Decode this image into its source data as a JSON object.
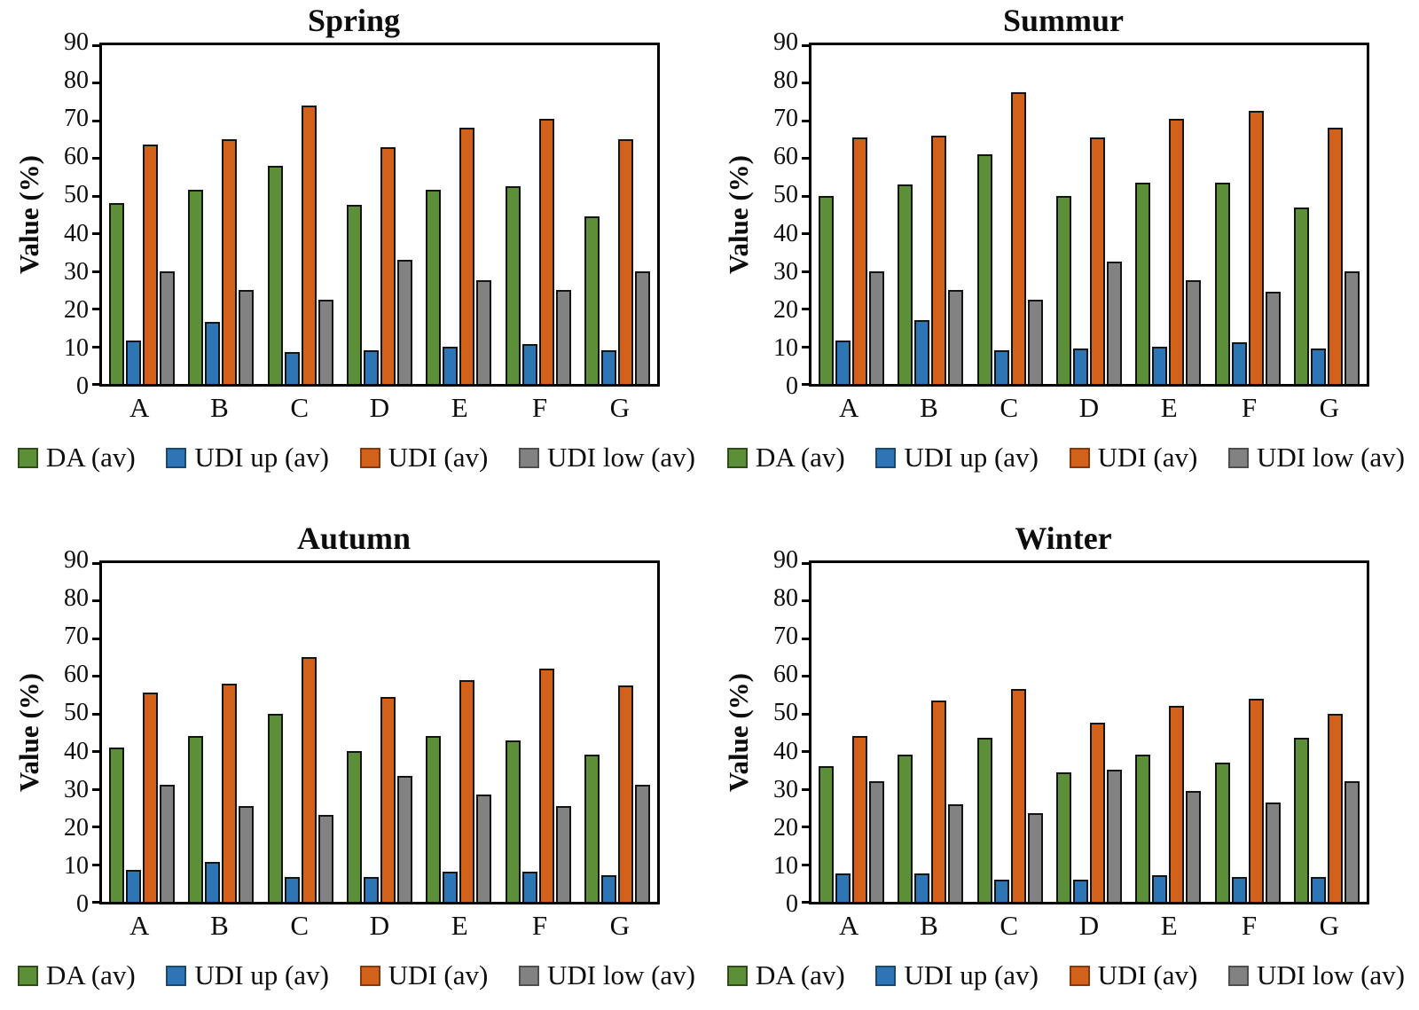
{
  "figure": {
    "ylabel": "Value (%)",
    "categories": [
      "A",
      "B",
      "C",
      "D",
      "E",
      "F",
      "G"
    ],
    "series_colors": {
      "da": "#5C8F38",
      "udi_up": "#2E75B6",
      "udi": "#D2611C",
      "udi_low": "#828282"
    },
    "series_swatch_borders": {
      "da": "#2F4F1A",
      "udi_up": "#1A4971",
      "udi": "#833A0E",
      "udi_low": "#4F4F4F"
    }
  },
  "chart_data": [
    {
      "type": "bar",
      "title": "Spring",
      "ylabel": "Value (%)",
      "xlabel": "",
      "ylim": [
        0,
        90
      ],
      "yticks": [
        0,
        10,
        20,
        30,
        40,
        50,
        60,
        70,
        80,
        90
      ],
      "grid": false,
      "legend_position": "bottom",
      "categories": [
        "A",
        "B",
        "C",
        "D",
        "E",
        "F",
        "G"
      ],
      "series": [
        {
          "name": "DA (av)",
          "color": "#5C8F38",
          "border": "#2F4F1A",
          "values": [
            48,
            51.5,
            58,
            47.5,
            51.5,
            52.5,
            44.5
          ]
        },
        {
          "name": "UDI up (av)",
          "color": "#2E75B6",
          "border": "#1A4971",
          "values": [
            11.5,
            16.5,
            8.5,
            9,
            10,
            10.5,
            9
          ]
        },
        {
          "name": "UDI (av)",
          "color": "#D2611C",
          "border": "#833A0E",
          "values": [
            63.5,
            65,
            74,
            63,
            68,
            70.5,
            65
          ]
        },
        {
          "name": "UDI low (av)",
          "color": "#828282",
          "border": "#4F4F4F",
          "values": [
            30,
            25,
            22.5,
            33,
            27.5,
            25,
            30
          ]
        }
      ]
    },
    {
      "type": "bar",
      "title": "Summur",
      "ylabel": "Value (%)",
      "xlabel": "",
      "ylim": [
        0,
        90
      ],
      "yticks": [
        0,
        10,
        20,
        30,
        40,
        50,
        60,
        70,
        80,
        90
      ],
      "grid": false,
      "legend_position": "bottom",
      "categories": [
        "A",
        "B",
        "C",
        "D",
        "E",
        "F",
        "G"
      ],
      "series": [
        {
          "name": "DA (av)",
          "color": "#5C8F38",
          "border": "#2F4F1A",
          "values": [
            50,
            53,
            61,
            50,
            53.5,
            53.5,
            47
          ]
        },
        {
          "name": "UDI up (av)",
          "color": "#2E75B6",
          "border": "#1A4971",
          "values": [
            11.5,
            17,
            9,
            9.5,
            10,
            11,
            9.5
          ]
        },
        {
          "name": "UDI (av)",
          "color": "#D2611C",
          "border": "#833A0E",
          "values": [
            65.5,
            66,
            77.5,
            65.5,
            70.5,
            72.5,
            68
          ]
        },
        {
          "name": "UDI low (av)",
          "color": "#828282",
          "border": "#4F4F4F",
          "values": [
            30,
            25,
            22.5,
            32.5,
            27.5,
            24.5,
            30
          ]
        }
      ]
    },
    {
      "type": "bar",
      "title": "Autumn",
      "ylabel": "Value (%)",
      "xlabel": "",
      "ylim": [
        0,
        90
      ],
      "yticks": [
        0,
        10,
        20,
        30,
        40,
        50,
        60,
        70,
        80,
        90
      ],
      "grid": false,
      "legend_position": "bottom",
      "categories": [
        "A",
        "B",
        "C",
        "D",
        "E",
        "F",
        "G"
      ],
      "series": [
        {
          "name": "DA (av)",
          "color": "#5C8F38",
          "border": "#2F4F1A",
          "values": [
            41,
            44,
            50,
            40,
            44,
            43,
            39
          ]
        },
        {
          "name": "UDI up (av)",
          "color": "#2E75B6",
          "border": "#1A4971",
          "values": [
            8.5,
            10.5,
            6.5,
            6.5,
            8,
            8,
            7
          ]
        },
        {
          "name": "UDI (av)",
          "color": "#D2611C",
          "border": "#833A0E",
          "values": [
            55.5,
            58,
            65,
            54.5,
            59,
            62,
            57.5
          ]
        },
        {
          "name": "UDI low (av)",
          "color": "#828282",
          "border": "#4F4F4F",
          "values": [
            31,
            25.5,
            23,
            33.5,
            28.5,
            25.5,
            31
          ]
        }
      ]
    },
    {
      "type": "bar",
      "title": "Winter",
      "ylabel": "Value (%)",
      "xlabel": "",
      "ylim": [
        0,
        90
      ],
      "yticks": [
        0,
        10,
        20,
        30,
        40,
        50,
        60,
        70,
        80,
        90
      ],
      "grid": false,
      "legend_position": "bottom",
      "categories": [
        "A",
        "B",
        "C",
        "D",
        "E",
        "F",
        "G"
      ],
      "series": [
        {
          "name": "DA (av)",
          "color": "#5C8F38",
          "border": "#2F4F1A",
          "values": [
            36,
            39,
            43.5,
            34.5,
            39,
            37,
            43.5
          ]
        },
        {
          "name": "UDI up (av)",
          "color": "#2E75B6",
          "border": "#1A4971",
          "values": [
            7.5,
            7.5,
            6,
            6,
            7,
            6.5,
            6.5
          ]
        },
        {
          "name": "UDI (av)",
          "color": "#D2611C",
          "border": "#833A0E",
          "values": [
            44,
            53.5,
            56.5,
            47.5,
            52,
            54,
            50
          ]
        },
        {
          "name": "UDI low (av)",
          "color": "#828282",
          "border": "#4F4F4F",
          "values": [
            32,
            26,
            23.5,
            35,
            29.5,
            26.5,
            32
          ]
        }
      ]
    }
  ]
}
